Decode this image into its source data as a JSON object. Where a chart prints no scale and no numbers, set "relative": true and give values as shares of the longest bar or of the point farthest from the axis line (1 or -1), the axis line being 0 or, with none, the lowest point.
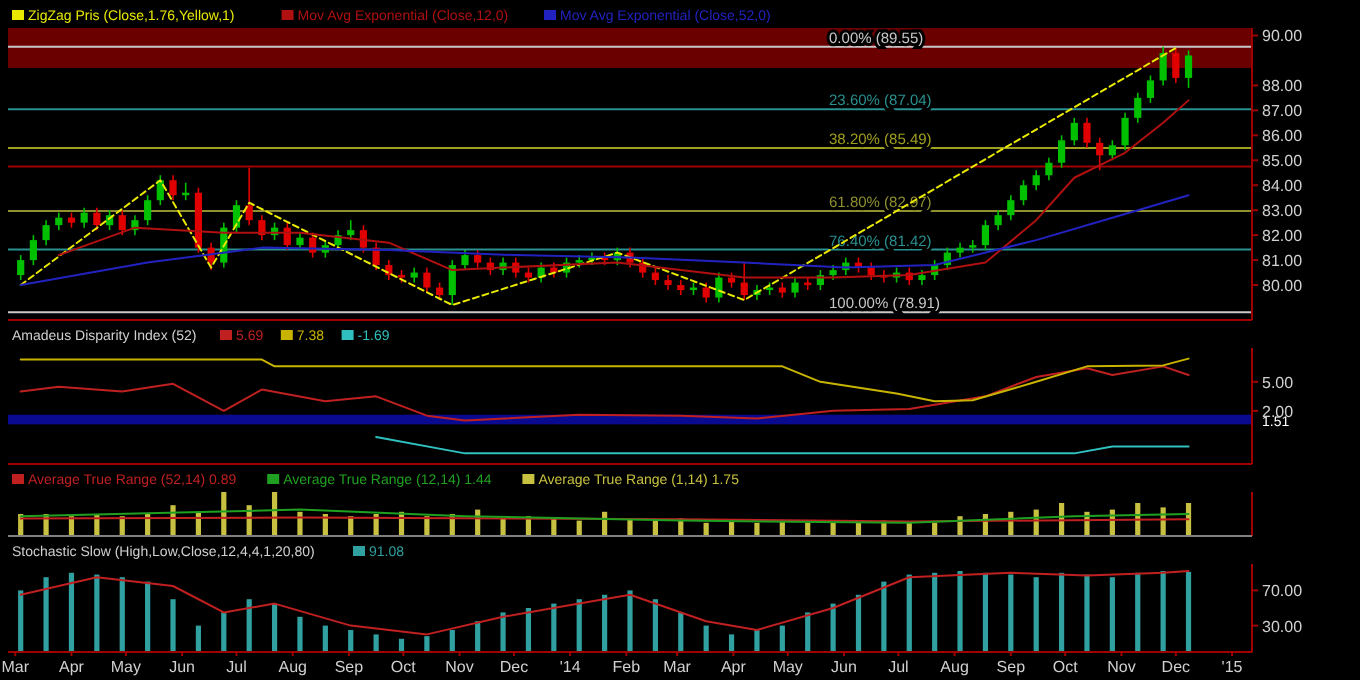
{
  "chart_data": [
    {
      "type": "candlestick",
      "legend": "top left",
      "tick_labels": "y",
      "xlim": [
        "2013-02-25",
        "2015-01-12"
      ],
      "ylim": [
        78.6,
        90.3
      ],
      "yticks": [
        {
          "value": 80,
          "label": "80.00"
        },
        {
          "value": 81,
          "label": "81.00"
        },
        {
          "value": 82,
          "label": "82.00"
        },
        {
          "value": 83,
          "label": "83.00"
        },
        {
          "value": 84,
          "label": "84.00"
        },
        {
          "value": 85,
          "label": "85.00"
        },
        {
          "value": 86,
          "label": "86.00"
        },
        {
          "value": 87,
          "label": "87.00"
        },
        {
          "value": 88,
          "label": "88.00"
        },
        {
          "value": 90,
          "label": "90.00"
        }
      ],
      "x": [
        "2013-03-04",
        "2013-03-11",
        "2013-03-18",
        "2013-03-25",
        "2013-04-01",
        "2013-04-08",
        "2013-04-15",
        "2013-04-22",
        "2013-04-29",
        "2013-05-06",
        "2013-05-13",
        "2013-05-20",
        "2013-05-27",
        "2013-06-03",
        "2013-06-10",
        "2013-06-17",
        "2013-06-24",
        "2013-07-01",
        "2013-07-08",
        "2013-07-15",
        "2013-07-22",
        "2013-07-29",
        "2013-08-05",
        "2013-08-12",
        "2013-08-19",
        "2013-08-26",
        "2013-09-02",
        "2013-09-09",
        "2013-09-16",
        "2013-09-23",
        "2013-09-30",
        "2013-10-07",
        "2013-10-14",
        "2013-10-21",
        "2013-10-28",
        "2013-11-04",
        "2013-11-11",
        "2013-11-18",
        "2013-11-25",
        "2013-12-02",
        "2013-12-09",
        "2013-12-16",
        "2013-12-23",
        "2013-12-30",
        "2014-01-06",
        "2014-01-13",
        "2014-01-20",
        "2014-01-27",
        "2014-02-03",
        "2014-02-10",
        "2014-02-17",
        "2014-02-24",
        "2014-03-03",
        "2014-03-10",
        "2014-03-17",
        "2014-03-24",
        "2014-03-31",
        "2014-04-07",
        "2014-04-14",
        "2014-04-21",
        "2014-04-28",
        "2014-05-05",
        "2014-05-12",
        "2014-05-19",
        "2014-05-26",
        "2014-06-02",
        "2014-06-09",
        "2014-06-16",
        "2014-06-23",
        "2014-06-30",
        "2014-07-07",
        "2014-07-14",
        "2014-07-21",
        "2014-07-28",
        "2014-08-04",
        "2014-08-11",
        "2014-08-18",
        "2014-08-25",
        "2014-09-01",
        "2014-09-08",
        "2014-09-15",
        "2014-09-22",
        "2014-09-29",
        "2014-10-06",
        "2014-10-13",
        "2014-10-20",
        "2014-10-27",
        "2014-11-03",
        "2014-11-10",
        "2014-11-17",
        "2014-11-24",
        "2014-12-01",
        "2014-12-08"
      ],
      "ohlc": [
        [
          80.4,
          81.2,
          80.2,
          81.0
        ],
        [
          81.0,
          82.0,
          80.8,
          81.8
        ],
        [
          81.8,
          82.6,
          81.6,
          82.4
        ],
        [
          82.4,
          82.9,
          82.2,
          82.7
        ],
        [
          82.7,
          82.9,
          82.3,
          82.5
        ],
        [
          82.5,
          83.1,
          82.3,
          82.9
        ],
        [
          82.9,
          83.1,
          82.2,
          82.4
        ],
        [
          82.4,
          83.0,
          82.2,
          82.8
        ],
        [
          82.8,
          83.0,
          82.0,
          82.2
        ],
        [
          82.2,
          82.8,
          82.0,
          82.6
        ],
        [
          82.6,
          83.6,
          82.4,
          83.4
        ],
        [
          83.4,
          84.4,
          83.2,
          84.2
        ],
        [
          84.2,
          84.4,
          83.4,
          83.6
        ],
        [
          83.6,
          84.1,
          83.4,
          83.7
        ],
        [
          83.7,
          83.9,
          81.3,
          81.5
        ],
        [
          81.5,
          81.7,
          80.6,
          80.9
        ],
        [
          80.9,
          82.5,
          80.7,
          82.3
        ],
        [
          82.3,
          83.4,
          82.1,
          83.2
        ],
        [
          83.2,
          84.7,
          82.4,
          82.6
        ],
        [
          82.6,
          82.8,
          81.8,
          82.0
        ],
        [
          82.0,
          82.5,
          81.8,
          82.3
        ],
        [
          82.3,
          82.5,
          81.4,
          81.6
        ],
        [
          81.6,
          82.1,
          81.4,
          81.9
        ],
        [
          81.9,
          82.1,
          81.1,
          81.3
        ],
        [
          81.3,
          81.8,
          81.1,
          81.6
        ],
        [
          81.6,
          82.2,
          81.4,
          82.0
        ],
        [
          82.0,
          82.6,
          81.8,
          82.2
        ],
        [
          82.2,
          82.4,
          81.3,
          81.5
        ],
        [
          81.5,
          81.7,
          80.6,
          80.8
        ],
        [
          80.8,
          81.0,
          80.2,
          80.4
        ],
        [
          80.4,
          80.6,
          80.1,
          80.3
        ],
        [
          80.3,
          80.7,
          80.1,
          80.5
        ],
        [
          80.5,
          80.7,
          79.7,
          79.9
        ],
        [
          79.9,
          80.1,
          79.4,
          79.6
        ],
        [
          79.6,
          81.0,
          79.2,
          80.8
        ],
        [
          80.8,
          81.4,
          80.6,
          81.2
        ],
        [
          81.2,
          81.4,
          80.7,
          80.9
        ],
        [
          80.9,
          81.1,
          80.4,
          80.6
        ],
        [
          80.6,
          81.1,
          80.4,
          80.9
        ],
        [
          80.9,
          81.1,
          80.3,
          80.5
        ],
        [
          80.5,
          80.7,
          80.1,
          80.3
        ],
        [
          80.3,
          80.9,
          80.1,
          80.7
        ],
        [
          80.7,
          80.9,
          80.3,
          80.5
        ],
        [
          80.5,
          81.1,
          80.3,
          80.9
        ],
        [
          80.9,
          81.2,
          80.7,
          81.0
        ],
        [
          81.0,
          81.3,
          80.8,
          81.1
        ],
        [
          81.1,
          81.3,
          80.8,
          81.0
        ],
        [
          81.0,
          81.5,
          80.8,
          81.3
        ],
        [
          81.3,
          81.5,
          80.7,
          80.9
        ],
        [
          80.9,
          81.1,
          80.3,
          80.5
        ],
        [
          80.5,
          80.7,
          80.0,
          80.2
        ],
        [
          80.2,
          80.4,
          79.8,
          80.0
        ],
        [
          80.0,
          80.2,
          79.6,
          79.8
        ],
        [
          79.8,
          80.1,
          79.6,
          79.9
        ],
        [
          79.9,
          80.1,
          79.3,
          79.5
        ],
        [
          79.5,
          80.5,
          79.3,
          80.3
        ],
        [
          80.3,
          80.5,
          79.9,
          80.1
        ],
        [
          80.1,
          80.9,
          79.4,
          79.6
        ],
        [
          79.6,
          80.0,
          79.4,
          79.8
        ],
        [
          79.8,
          80.1,
          79.6,
          79.9
        ],
        [
          79.9,
          80.1,
          79.5,
          79.7
        ],
        [
          79.7,
          80.3,
          79.5,
          80.1
        ],
        [
          80.1,
          80.3,
          79.8,
          80.0
        ],
        [
          80.0,
          80.6,
          79.8,
          80.4
        ],
        [
          80.4,
          80.8,
          80.2,
          80.6
        ],
        [
          80.6,
          81.1,
          80.4,
          80.9
        ],
        [
          80.9,
          81.1,
          80.5,
          80.7
        ],
        [
          80.7,
          80.9,
          80.2,
          80.4
        ],
        [
          80.4,
          80.6,
          80.1,
          80.3
        ],
        [
          80.3,
          80.7,
          80.1,
          80.5
        ],
        [
          80.5,
          80.7,
          80.0,
          80.2
        ],
        [
          80.2,
          80.6,
          80.0,
          80.4
        ],
        [
          80.4,
          81.0,
          80.2,
          80.8
        ],
        [
          80.8,
          81.5,
          80.6,
          81.3
        ],
        [
          81.3,
          81.7,
          81.1,
          81.5
        ],
        [
          81.5,
          81.8,
          81.3,
          81.6
        ],
        [
          81.6,
          82.6,
          81.4,
          82.4
        ],
        [
          82.4,
          83.0,
          82.2,
          82.8
        ],
        [
          82.8,
          83.6,
          82.6,
          83.4
        ],
        [
          83.4,
          84.2,
          83.2,
          84.0
        ],
        [
          84.0,
          84.6,
          83.8,
          84.4
        ],
        [
          84.4,
          85.1,
          84.2,
          84.9
        ],
        [
          84.9,
          86.0,
          84.7,
          85.8
        ],
        [
          85.8,
          86.7,
          85.6,
          86.5
        ],
        [
          86.5,
          86.7,
          85.5,
          85.7
        ],
        [
          85.7,
          85.9,
          84.6,
          85.2
        ],
        [
          85.2,
          85.8,
          85.0,
          85.6
        ],
        [
          85.6,
          86.9,
          85.4,
          86.7
        ],
        [
          86.7,
          87.7,
          86.5,
          87.5
        ],
        [
          87.5,
          88.4,
          87.3,
          88.2
        ],
        [
          88.2,
          89.55,
          88.0,
          89.3
        ],
        [
          89.3,
          89.5,
          88.1,
          88.3
        ],
        [
          88.3,
          89.4,
          87.9,
          89.2
        ]
      ],
      "series": [
        {
          "name": "ZigZag Pris (Close,1.76,Yellow,1)",
          "type": "line",
          "color": "#e8e800",
          "line_style": "dashed",
          "x": [
            "2013-03-04",
            "2013-05-20",
            "2013-06-17",
            "2013-07-08",
            "2013-10-28",
            "2014-01-27",
            "2014-04-07",
            "2014-12-01"
          ],
          "values": [
            80.0,
            84.2,
            80.7,
            83.3,
            79.2,
            81.3,
            79.4,
            89.5
          ]
        },
        {
          "name": "Mov Avg Exponential (Close,12,0)",
          "type": "line",
          "color": "#b01010",
          "x": [
            "2013-03-25",
            "2013-05-06",
            "2013-06-24",
            "2013-08-05",
            "2013-09-23",
            "2013-10-28",
            "2013-11-25",
            "2014-01-27",
            "2014-04-07",
            "2014-05-26",
            "2014-07-07",
            "2014-08-18",
            "2014-09-15",
            "2014-10-06",
            "2014-11-03",
            "2014-11-24",
            "2014-12-08"
          ],
          "values": [
            81.2,
            82.3,
            82.1,
            82.1,
            81.7,
            80.6,
            80.7,
            80.9,
            80.3,
            80.3,
            80.4,
            80.9,
            82.6,
            84.3,
            85.3,
            86.5,
            87.4
          ]
        },
        {
          "name": "Mov Avg Exponential (Close,52,0)",
          "type": "line",
          "color": "#2222c0",
          "x": [
            "2013-03-04",
            "2013-05-13",
            "2013-07-15",
            "2013-09-23",
            "2013-12-02",
            "2014-02-03",
            "2014-04-07",
            "2014-06-02",
            "2014-07-21",
            "2014-09-15",
            "2014-10-27",
            "2014-12-08"
          ],
          "values": [
            80.0,
            80.9,
            81.5,
            81.4,
            81.2,
            81.1,
            80.9,
            80.7,
            80.8,
            81.8,
            82.7,
            83.6
          ]
        }
      ],
      "bands": [
        {
          "axis": "y",
          "from": 88.7,
          "to": 90.3,
          "color": "#6a0000"
        }
      ],
      "ref_lines": [
        {
          "axis": "y",
          "value": 89.55,
          "label": "0.00% (89.55)",
          "color": "#c8c8c8"
        },
        {
          "axis": "y",
          "value": 87.04,
          "label": "23.60% (87.04)",
          "color": "#2a9090"
        },
        {
          "axis": "y",
          "value": 85.49,
          "label": "38.20% (85.49)",
          "color": "#a0a020"
        },
        {
          "axis": "y",
          "value": 84.75,
          "color": "#a00000"
        },
        {
          "axis": "y",
          "value": 82.97,
          "label": "61.80% (82.97)",
          "color": "#909030"
        },
        {
          "axis": "y",
          "value": 81.42,
          "label": "76.40% (81.42)",
          "color": "#2a9090"
        },
        {
          "axis": "y",
          "value": 78.91,
          "label": "100.00% (78.91)",
          "color": "#c8c8c8"
        }
      ]
    },
    {
      "type": "line",
      "title": "Amadeus Disparity Index (52)",
      "legend": "top left",
      "tick_labels": "y",
      "xlim": [
        "2013-02-25",
        "2015-01-12"
      ],
      "ylim": [
        -3.5,
        8.5
      ],
      "yticks": [
        {
          "value": 5,
          "label": "5.00"
        },
        {
          "value": 2,
          "label": "2.00"
        }
      ],
      "bands": [
        {
          "axis": "y",
          "from": 0.6,
          "to": 1.6,
          "label": "1.51",
          "color": "#0a0a90"
        }
      ],
      "series": [
        {
          "name": "5.69",
          "color": "#c02020",
          "x": [
            "2013-03-04",
            "2013-03-25",
            "2013-04-29",
            "2013-05-27",
            "2013-06-24",
            "2013-07-15",
            "2013-08-19",
            "2013-09-16",
            "2013-10-14",
            "2013-11-04",
            "2014-01-06",
            "2014-03-03",
            "2014-04-14",
            "2014-05-26",
            "2014-07-07",
            "2014-08-18",
            "2014-09-15",
            "2014-10-13",
            "2014-10-27",
            "2014-11-24",
            "2014-12-08"
          ],
          "values": [
            4.0,
            4.5,
            4.0,
            4.8,
            2.0,
            4.2,
            3.0,
            3.5,
            1.5,
            1.0,
            1.6,
            1.5,
            1.2,
            2.0,
            2.2,
            3.5,
            5.5,
            6.4,
            5.7,
            6.6,
            5.7
          ]
        },
        {
          "name": "7.38",
          "color": "#c8b400",
          "x": [
            "2013-03-04",
            "2013-07-15",
            "2013-07-22",
            "2014-04-28",
            "2014-05-19",
            "2014-06-30",
            "2014-07-21",
            "2014-08-11",
            "2014-09-15",
            "2014-10-13",
            "2014-11-24",
            "2014-12-08"
          ],
          "values": [
            7.3,
            7.3,
            6.6,
            6.6,
            5.0,
            3.8,
            3.0,
            3.1,
            5.0,
            6.6,
            6.7,
            7.4
          ]
        },
        {
          "name": "-1.69",
          "color": "#30c0c0",
          "x": [
            "2013-09-16",
            "2013-11-04",
            "2014-10-06",
            "2014-10-27",
            "2014-12-08"
          ],
          "values": [
            -0.7,
            -2.4,
            -2.4,
            -1.7,
            -1.7
          ]
        }
      ]
    },
    {
      "type": "bar",
      "relative": true,
      "legend": "top left",
      "tick_labels": false,
      "xlim": [
        "2013-02-25",
        "2015-01-12"
      ],
      "series": [
        {
          "name": "Average True Range (52,14) 0.89",
          "type": "line",
          "color": "#c02020",
          "x": [
            "2013-03-04",
            "2013-08-05",
            "2014-03-03",
            "2014-07-07",
            "2014-12-08"
          ],
          "values": [
            0.4,
            0.42,
            0.38,
            0.33,
            0.38
          ]
        },
        {
          "name": "Average True Range (12,14) 1.44",
          "type": "line",
          "color": "#20a020",
          "x": [
            "2013-03-04",
            "2013-06-17",
            "2013-08-05",
            "2013-11-04",
            "2014-03-03",
            "2014-07-07",
            "2014-10-06",
            "2014-12-08"
          ],
          "values": [
            0.45,
            0.55,
            0.6,
            0.45,
            0.35,
            0.3,
            0.45,
            0.5
          ]
        },
        {
          "name": "Average True Range (1,14) 1.75",
          "type": "bar",
          "color": "#c8c040",
          "x": [
            "2013-03-04",
            "2013-03-18",
            "2013-04-01",
            "2013-04-15",
            "2013-04-29",
            "2013-05-13",
            "2013-05-27",
            "2013-06-10",
            "2013-06-24",
            "2013-07-08",
            "2013-07-22",
            "2013-08-05",
            "2013-08-19",
            "2013-09-02",
            "2013-09-16",
            "2013-09-30",
            "2013-10-14",
            "2013-10-28",
            "2013-11-11",
            "2013-11-25",
            "2013-12-09",
            "2013-12-23",
            "2014-01-06",
            "2014-01-20",
            "2014-02-03",
            "2014-02-17",
            "2014-03-03",
            "2014-03-17",
            "2014-03-31",
            "2014-04-14",
            "2014-04-28",
            "2014-05-12",
            "2014-05-26",
            "2014-06-09",
            "2014-06-23",
            "2014-07-07",
            "2014-07-21",
            "2014-08-04",
            "2014-08-18",
            "2014-09-01",
            "2014-09-15",
            "2014-09-29",
            "2014-10-13",
            "2014-10-27",
            "2014-11-10",
            "2014-11-24",
            "2014-12-08"
          ],
          "values": [
            0.5,
            0.5,
            0.45,
            0.5,
            0.45,
            0.5,
            0.7,
            0.55,
            1.0,
            0.7,
            1.0,
            0.55,
            0.5,
            0.45,
            0.5,
            0.55,
            0.45,
            0.5,
            0.6,
            0.4,
            0.45,
            0.4,
            0.35,
            0.55,
            0.4,
            0.35,
            0.4,
            0.3,
            0.35,
            0.3,
            0.35,
            0.3,
            0.3,
            0.3,
            0.35,
            0.3,
            0.3,
            0.45,
            0.5,
            0.55,
            0.6,
            0.75,
            0.55,
            0.6,
            0.75,
            0.65,
            0.75
          ]
        }
      ]
    },
    {
      "type": "bar",
      "title": "Stochastic Slow (High,Low,Close,12,4,4,1,20,80)",
      "legend": "top left",
      "xlim": [
        "2013-02-25",
        "2015-01-12"
      ],
      "ylim": [
        0,
        100
      ],
      "yticks": [
        {
          "value": 70,
          "label": "70.00"
        },
        {
          "value": 30,
          "label": "30.00"
        }
      ],
      "xticks": [
        {
          "value": "2013-03-01",
          "label": "Mar"
        },
        {
          "value": "2013-04-01",
          "label": "Apr"
        },
        {
          "value": "2013-05-01",
          "label": "May"
        },
        {
          "value": "2013-06-01",
          "label": "Jun"
        },
        {
          "value": "2013-07-01",
          "label": "Jul"
        },
        {
          "value": "2013-08-01",
          "label": "Aug"
        },
        {
          "value": "2013-09-01",
          "label": "Sep"
        },
        {
          "value": "2013-10-01",
          "label": "Oct"
        },
        {
          "value": "2013-11-01",
          "label": "Nov"
        },
        {
          "value": "2013-12-01",
          "label": "Dec"
        },
        {
          "value": "2014-01-01",
          "label": "'14"
        },
        {
          "value": "2014-02-01",
          "label": "Feb"
        },
        {
          "value": "2014-03-01",
          "label": "Mar"
        },
        {
          "value": "2014-04-01",
          "label": "Apr"
        },
        {
          "value": "2014-05-01",
          "label": "May"
        },
        {
          "value": "2014-06-01",
          "label": "Jun"
        },
        {
          "value": "2014-07-01",
          "label": "Jul"
        },
        {
          "value": "2014-08-01",
          "label": "Aug"
        },
        {
          "value": "2014-09-01",
          "label": "Sep"
        },
        {
          "value": "2014-10-01",
          "label": "Oct"
        },
        {
          "value": "2014-11-01",
          "label": "Nov"
        },
        {
          "value": "2014-12-01",
          "label": "Dec"
        },
        {
          "value": "2015-01-01",
          "label": "'15"
        }
      ],
      "series": [
        {
          "name": "91.08",
          "type": "bar",
          "color": "#30a0a0",
          "x": [
            "2013-03-04",
            "2013-03-18",
            "2013-04-01",
            "2013-04-15",
            "2013-04-29",
            "2013-05-13",
            "2013-05-27",
            "2013-06-10",
            "2013-06-24",
            "2013-07-08",
            "2013-07-22",
            "2013-08-05",
            "2013-08-19",
            "2013-09-02",
            "2013-09-16",
            "2013-09-30",
            "2013-10-14",
            "2013-10-28",
            "2013-11-11",
            "2013-11-25",
            "2013-12-09",
            "2013-12-23",
            "2014-01-06",
            "2014-01-20",
            "2014-02-03",
            "2014-02-17",
            "2014-03-03",
            "2014-03-17",
            "2014-03-31",
            "2014-04-14",
            "2014-04-28",
            "2014-05-12",
            "2014-05-26",
            "2014-06-09",
            "2014-06-23",
            "2014-07-07",
            "2014-07-21",
            "2014-08-04",
            "2014-08-18",
            "2014-09-01",
            "2014-09-15",
            "2014-09-29",
            "2014-10-13",
            "2014-10-27",
            "2014-11-10",
            "2014-11-24",
            "2014-12-08"
          ],
          "values": [
            70,
            85,
            90,
            88,
            85,
            80,
            60,
            30,
            45,
            60,
            55,
            40,
            30,
            25,
            20,
            15,
            18,
            25,
            35,
            45,
            50,
            55,
            60,
            65,
            70,
            60,
            45,
            30,
            20,
            25,
            30,
            45,
            55,
            65,
            80,
            88,
            90,
            92,
            90,
            88,
            85,
            90,
            88,
            85,
            90,
            92,
            91
          ]
        },
        {
          "type": "line",
          "color": "#c02020",
          "x": [
            "2013-03-04",
            "2013-04-15",
            "2013-05-27",
            "2013-06-24",
            "2013-07-22",
            "2013-09-02",
            "2013-10-14",
            "2013-11-25",
            "2014-01-06",
            "2014-02-03",
            "2014-03-17",
            "2014-04-14",
            "2014-05-26",
            "2014-07-07",
            "2014-09-01",
            "2014-10-13",
            "2014-11-24",
            "2014-12-08"
          ],
          "values": [
            65,
            85,
            75,
            45,
            55,
            30,
            20,
            40,
            55,
            65,
            35,
            25,
            50,
            85,
            90,
            87,
            90,
            92
          ]
        }
      ]
    }
  ]
}
